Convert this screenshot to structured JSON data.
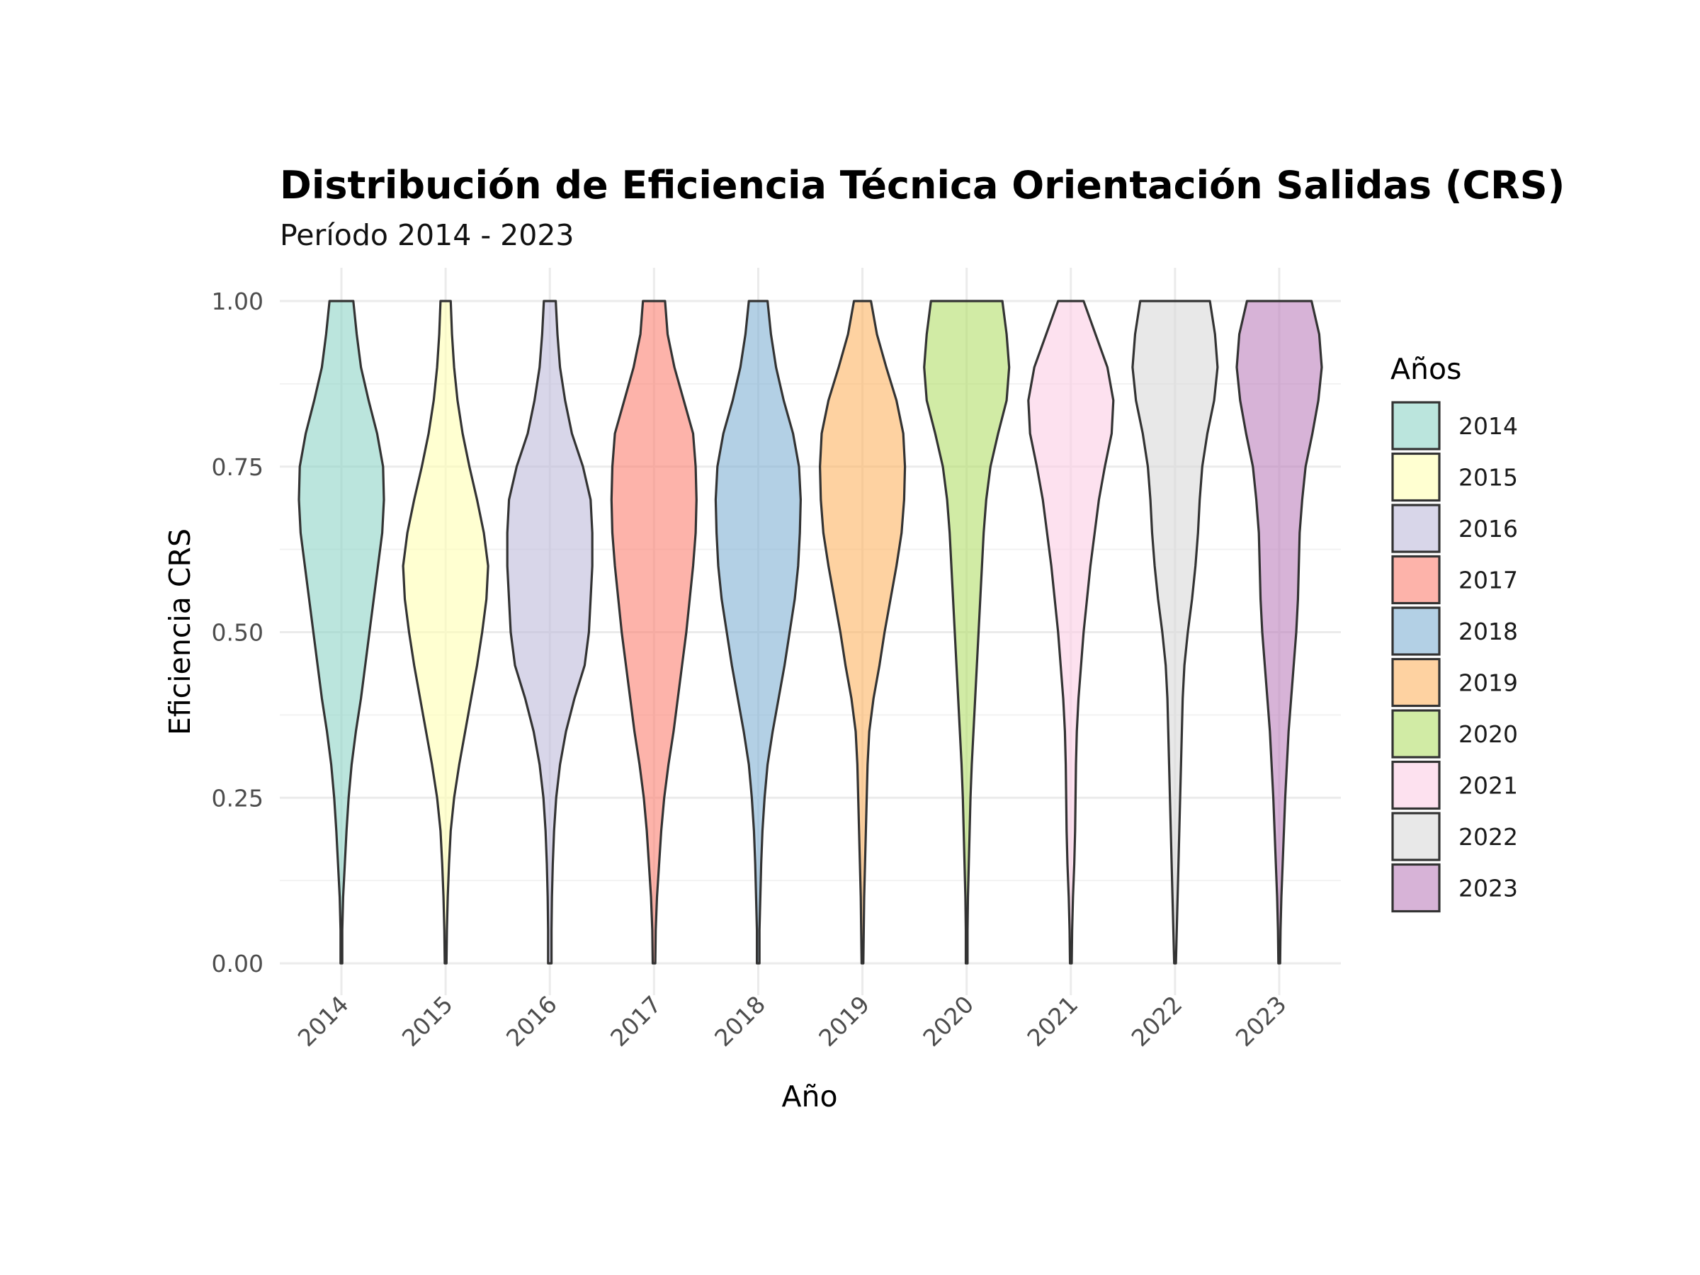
{
  "chart_data": {
    "type": "violin",
    "title": "Distribución de Eficiencia Técnica Orientación Salidas (CRS)",
    "subtitle": "Período 2014 - 2023",
    "xlabel": "Año",
    "ylabel": "Eficiencia CRS",
    "ylim": [
      0,
      1
    ],
    "y_ticks": [
      "0.00",
      "0.25",
      "0.50",
      "0.75",
      "1.00"
    ],
    "grid": true,
    "legend": {
      "title": "Años",
      "placement": "right"
    },
    "categories": [
      "2014",
      "2015",
      "2016",
      "2017",
      "2018",
      "2019",
      "2020",
      "2021",
      "2022",
      "2023"
    ],
    "density_y": [
      0.0,
      0.05,
      0.1,
      0.15,
      0.2,
      0.25,
      0.3,
      0.35,
      0.4,
      0.45,
      0.5,
      0.55,
      0.6,
      0.65,
      0.7,
      0.75,
      0.8,
      0.85,
      0.9,
      0.95,
      1.0
    ],
    "series": [
      {
        "name": "2014",
        "color": "#8DD3C7",
        "density": [
          0.02,
          0.02,
          0.04,
          0.08,
          0.12,
          0.17,
          0.24,
          0.34,
          0.46,
          0.56,
          0.66,
          0.76,
          0.86,
          0.96,
          1.0,
          0.98,
          0.84,
          0.64,
          0.46,
          0.36,
          0.28
        ]
      },
      {
        "name": "2015",
        "color": "#FFFFB3",
        "density": [
          0.02,
          0.03,
          0.05,
          0.08,
          0.12,
          0.2,
          0.32,
          0.46,
          0.6,
          0.74,
          0.86,
          0.96,
          1.0,
          0.9,
          0.74,
          0.56,
          0.4,
          0.28,
          0.2,
          0.15,
          0.12
        ]
      },
      {
        "name": "2016",
        "color": "#BEBADA",
        "density": [
          0.04,
          0.04,
          0.05,
          0.07,
          0.1,
          0.15,
          0.24,
          0.38,
          0.58,
          0.82,
          0.92,
          0.96,
          1.0,
          1.0,
          0.96,
          0.78,
          0.52,
          0.36,
          0.24,
          0.18,
          0.14
        ]
      },
      {
        "name": "2017",
        "color": "#FB8072",
        "density": [
          0.03,
          0.04,
          0.07,
          0.12,
          0.17,
          0.24,
          0.34,
          0.46,
          0.56,
          0.66,
          0.76,
          0.84,
          0.92,
          0.98,
          1.0,
          0.98,
          0.92,
          0.7,
          0.48,
          0.32,
          0.26
        ]
      },
      {
        "name": "2018",
        "color": "#80B1D3",
        "density": [
          0.03,
          0.03,
          0.05,
          0.07,
          0.1,
          0.15,
          0.22,
          0.34,
          0.48,
          0.62,
          0.74,
          0.86,
          0.94,
          0.98,
          1.0,
          0.96,
          0.82,
          0.6,
          0.42,
          0.3,
          0.22
        ]
      },
      {
        "name": "2019",
        "color": "#FDB462",
        "density": [
          0.02,
          0.03,
          0.04,
          0.06,
          0.08,
          0.1,
          0.12,
          0.16,
          0.26,
          0.4,
          0.52,
          0.66,
          0.8,
          0.92,
          0.98,
          1.0,
          0.96,
          0.8,
          0.56,
          0.34,
          0.2
        ]
      },
      {
        "name": "2020",
        "color": "#B3DE69",
        "density": [
          0.02,
          0.02,
          0.03,
          0.05,
          0.07,
          0.09,
          0.12,
          0.16,
          0.2,
          0.24,
          0.28,
          0.32,
          0.36,
          0.4,
          0.46,
          0.56,
          0.74,
          0.94,
          1.0,
          0.94,
          0.84
        ]
      },
      {
        "name": "2021",
        "color": "#FCCDE5",
        "density": [
          0.02,
          0.03,
          0.05,
          0.08,
          0.1,
          0.11,
          0.12,
          0.14,
          0.18,
          0.24,
          0.3,
          0.38,
          0.46,
          0.56,
          0.66,
          0.8,
          0.96,
          1.0,
          0.86,
          0.58,
          0.3
        ]
      },
      {
        "name": "2022",
        "color": "#D9D9D9",
        "density": [
          0.02,
          0.04,
          0.06,
          0.08,
          0.1,
          0.12,
          0.14,
          0.16,
          0.18,
          0.22,
          0.3,
          0.4,
          0.48,
          0.54,
          0.58,
          0.64,
          0.76,
          0.92,
          1.0,
          0.94,
          0.82
        ]
      },
      {
        "name": "2023",
        "color": "#BC80BD",
        "density": [
          0.02,
          0.03,
          0.05,
          0.08,
          0.11,
          0.14,
          0.18,
          0.22,
          0.28,
          0.34,
          0.4,
          0.44,
          0.46,
          0.48,
          0.54,
          0.62,
          0.78,
          0.92,
          1.0,
          0.94,
          0.76
        ]
      }
    ]
  }
}
